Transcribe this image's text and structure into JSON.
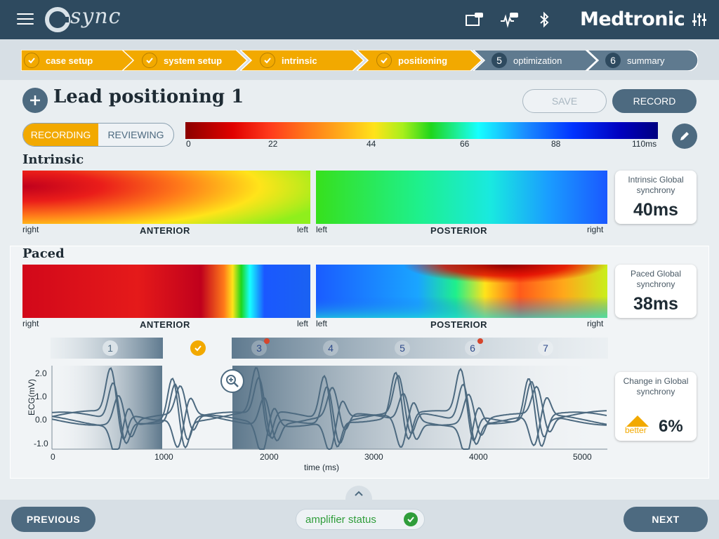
{
  "header": {
    "app_name": "sync",
    "brand": "Medtronic",
    "icons": [
      "menu-icon",
      "tablet-icon",
      "ecg-monitor-icon",
      "bluetooth-icon",
      "sliders-icon"
    ]
  },
  "stepper": {
    "steps": [
      {
        "label": "case setup",
        "status": "done"
      },
      {
        "label": "system setup",
        "status": "done"
      },
      {
        "label": "intrinsic",
        "status": "done"
      },
      {
        "label": "positioning",
        "status": "done"
      },
      {
        "number": "5",
        "label": "optimization",
        "status": "todo"
      },
      {
        "number": "6",
        "label": "summary",
        "status": "todo"
      }
    ]
  },
  "page": {
    "title": "Lead positioning 1",
    "save_label": "SAVE",
    "record_label": "RECORD"
  },
  "mode_toggle": {
    "recording": "RECORDING",
    "reviewing": "REVIEWING",
    "active": "RECORDING"
  },
  "color_scale": {
    "ticks": [
      "0",
      "22",
      "44",
      "66",
      "88",
      "110ms"
    ]
  },
  "intrinsic": {
    "title": "Intrinsic",
    "anterior": {
      "label": "ANTERIOR",
      "left_edge": "right",
      "right_edge": "left"
    },
    "posterior": {
      "label": "POSTERIOR",
      "left_edge": "left",
      "right_edge": "right"
    },
    "metric_label": "Intrinsic Global synchrony",
    "metric_value": "40ms"
  },
  "paced": {
    "title": "Paced",
    "anterior": {
      "label": "ANTERIOR",
      "left_edge": "right",
      "right_edge": "left"
    },
    "posterior": {
      "label": "POSTERIOR",
      "left_edge": "left",
      "right_edge": "right"
    },
    "metric_label": "Paced Global synchrony",
    "metric_value": "38ms"
  },
  "beats": [
    {
      "label": "1",
      "warning": false,
      "selected": false
    },
    {
      "label": "",
      "warning": false,
      "selected": true
    },
    {
      "label": "3",
      "warning": true,
      "selected": false
    },
    {
      "label": "4",
      "warning": false,
      "selected": false
    },
    {
      "label": "5",
      "warning": false,
      "selected": false
    },
    {
      "label": "6",
      "warning": true,
      "selected": false
    },
    {
      "label": "7",
      "warning": false,
      "selected": false
    }
  ],
  "ecg": {
    "ylabel": "ECG(mV)",
    "xlabel": "time (ms)",
    "y_ticks": [
      "2.0",
      "1.0",
      "0.0",
      "-1.0"
    ],
    "x_ticks": [
      "0",
      "1000",
      "2000",
      "3000",
      "4000",
      "5000"
    ]
  },
  "change": {
    "label": "Change in Global synchrony",
    "direction": "better",
    "value": "6%"
  },
  "footer": {
    "previous": "PREVIOUS",
    "next": "NEXT",
    "amplifier_status": "amplifier status"
  },
  "colors": {
    "accent": "#f2a900",
    "primary": "#2e4a5f",
    "button": "#4d6a80",
    "ok": "#2f9d3a"
  }
}
